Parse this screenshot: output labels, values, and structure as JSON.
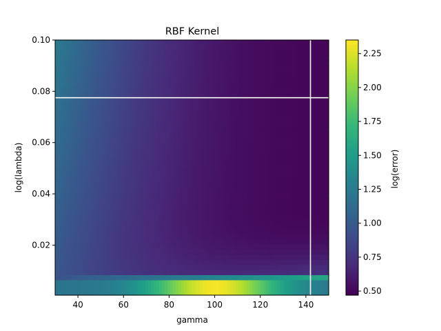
{
  "chart_data": {
    "type": "heatmap",
    "title": "RBF Kernel",
    "xlabel": "gamma",
    "ylabel": "log(lambda)",
    "xlim": [
      30,
      150
    ],
    "ylim": [
      0.0005,
      0.1
    ],
    "x_ticks": [
      40,
      60,
      80,
      100,
      120,
      140
    ],
    "x_tick_labels": [
      "40",
      "60",
      "80",
      "100",
      "120",
      "140"
    ],
    "y_ticks": [
      0.02,
      0.04,
      0.06,
      0.08,
      0.1
    ],
    "y_tick_labels": [
      "0.02",
      "0.04",
      "0.06",
      "0.08",
      "0.10"
    ],
    "colormap": "viridis",
    "colorbar": {
      "label": "log(error)",
      "range": [
        0.47,
        2.35
      ],
      "ticks": [
        0.5,
        0.75,
        1.0,
        1.25,
        1.5,
        1.75,
        2.0,
        2.25
      ],
      "tick_labels": [
        "0.50",
        "0.75",
        "1.00",
        "1.25",
        "1.50",
        "1.75",
        "2.00",
        "2.25"
      ]
    },
    "grid": false,
    "best_point": {
      "gamma": 142,
      "lambda": 0.0775
    },
    "marker_line_color": "#ffffff"
  }
}
